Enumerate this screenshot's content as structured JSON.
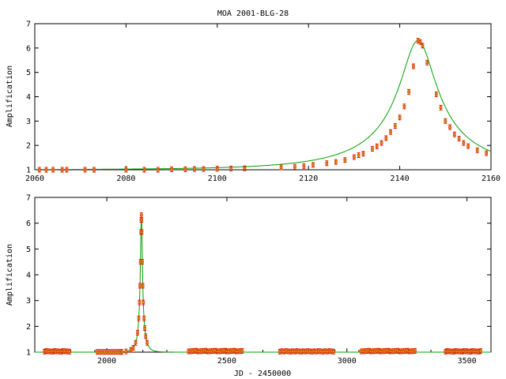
{
  "title": "MOA 2001-BLG-28",
  "colors": {
    "model": "#00a000",
    "data": "#e02000",
    "marker": "#c8a000",
    "axis": "#000000"
  },
  "chart_data": [
    {
      "type": "line",
      "title": "MOA 2001-BLG-28",
      "xlabel": "",
      "ylabel": "Amplification",
      "xlim": [
        2060,
        2160
      ],
      "ylim": [
        1,
        7
      ],
      "xticks": [
        2060,
        2080,
        2100,
        2120,
        2140,
        2160
      ],
      "yticks": [
        1,
        2,
        3,
        4,
        5,
        6,
        7
      ],
      "model": {
        "name": "",
        "t0": 2144,
        "u0": 0.16,
        "tE": 25
      },
      "points": [
        [
          2061,
          1.0
        ],
        [
          2062.5,
          1.0
        ],
        [
          2064,
          1.0
        ],
        [
          2066,
          1.0
        ],
        [
          2067,
          1.0
        ],
        [
          2071,
          1.0
        ],
        [
          2073,
          1.0
        ],
        [
          2080,
          1.0
        ],
        [
          2084,
          1.0
        ],
        [
          2087,
          1.0
        ],
        [
          2090,
          1.02
        ],
        [
          2093,
          1.02
        ],
        [
          2095,
          1.03
        ],
        [
          2097,
          1.03
        ],
        [
          2100,
          1.04
        ],
        [
          2103,
          1.05
        ],
        [
          2106,
          1.06
        ],
        [
          2114,
          1.1
        ],
        [
          2117,
          1.12
        ],
        [
          2119,
          1.15
        ],
        [
          2121,
          1.2
        ],
        [
          2124,
          1.27
        ],
        [
          2126,
          1.32
        ],
        [
          2128,
          1.4
        ],
        [
          2130,
          1.52
        ],
        [
          2131,
          1.6
        ],
        [
          2132,
          1.66
        ],
        [
          2134,
          1.86
        ],
        [
          2135,
          1.96
        ],
        [
          2136,
          2.1
        ],
        [
          2137,
          2.3
        ],
        [
          2138,
          2.55
        ],
        [
          2139,
          2.8
        ],
        [
          2140,
          3.15
        ],
        [
          2141,
          3.6
        ],
        [
          2142,
          4.2
        ],
        [
          2143,
          5.25
        ],
        [
          2144,
          6.3
        ],
        [
          2144.5,
          6.25
        ],
        [
          2145,
          6.1
        ],
        [
          2146,
          5.4
        ],
        [
          2148,
          4.1
        ],
        [
          2149,
          3.55
        ],
        [
          2150,
          3.0
        ],
        [
          2151,
          2.75
        ],
        [
          2152,
          2.45
        ],
        [
          2153,
          2.28
        ],
        [
          2154,
          2.1
        ],
        [
          2155,
          1.97
        ],
        [
          2157,
          1.8
        ],
        [
          2159,
          1.68
        ]
      ]
    },
    {
      "type": "line",
      "title": "",
      "xlabel": "JD - 2450000",
      "ylabel": "Amplification",
      "xlim": [
        1700,
        3600
      ],
      "ylim": [
        1,
        7
      ],
      "xticks": [
        2000,
        2500,
        3000,
        3500
      ],
      "yticks": [
        1,
        2,
        3,
        4,
        5,
        6,
        7
      ],
      "model": {
        "name": "",
        "t0": 2144,
        "u0": 0.16,
        "tE": 25
      },
      "point_ranges": [
        {
          "from": 1740,
          "to": 1850,
          "step": 7,
          "y": 1.02
        },
        {
          "from": 1960,
          "to": 2060,
          "step": 10,
          "y": 1.01
        },
        {
          "from": 2340,
          "to": 2570,
          "step": 8,
          "y": 1.03
        },
        {
          "from": 2720,
          "to": 2950,
          "step": 9,
          "y": 1.02
        },
        {
          "from": 3060,
          "to": 3290,
          "step": 8,
          "y": 1.03
        },
        {
          "from": 3410,
          "to": 3560,
          "step": 7,
          "y": 1.02
        }
      ],
      "peak_points": [
        2062,
        2080,
        2100,
        2110,
        2120,
        2128,
        2133,
        2136,
        2138,
        2140,
        2142,
        2143,
        2144,
        2145,
        2146,
        2148,
        2150,
        2152,
        2155,
        2158,
        2162,
        2168
      ]
    }
  ]
}
